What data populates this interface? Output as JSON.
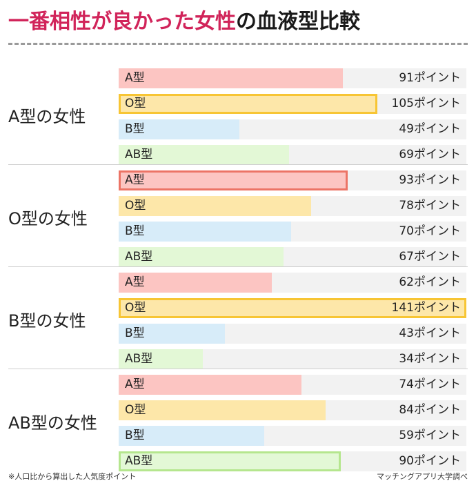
{
  "title": {
    "highlight": "一番相性が良かった女性",
    "rest": "の血液型比較"
  },
  "footnote": "※人口比から算出した人気度ポイント",
  "source": "マッチングアプリ大学調べ",
  "colors": {
    "A型": "#fcc5c2",
    "O型": "#fde7a9",
    "B型": "#d7ecf9",
    "AB型": "#e3f8d6",
    "highlight_title": "#d1245a",
    "best_border_A型": "#ec7466",
    "best_border_O型": "#f7c534",
    "best_border_AB型": "#b5e68e",
    "row_background": "#f2f2f2"
  },
  "chart_data": {
    "type": "bar",
    "orientation": "horizontal",
    "title": "一番相性が良かった女性の血液型比較",
    "xlim": [
      0,
      141
    ],
    "unit": "ポイント",
    "groups": [
      {
        "label": "A型の女性",
        "bars": [
          {
            "name": "A型",
            "value": 91,
            "display": "91ポイント",
            "best": false
          },
          {
            "name": "O型",
            "value": 105,
            "display": "105ポイント",
            "best": true
          },
          {
            "name": "B型",
            "value": 49,
            "display": "49ポイント",
            "best": false
          },
          {
            "name": "AB型",
            "value": 69,
            "display": "69ポイント",
            "best": false
          }
        ]
      },
      {
        "label": "O型の女性",
        "bars": [
          {
            "name": "A型",
            "value": 93,
            "display": "93ポイント",
            "best": true
          },
          {
            "name": "O型",
            "value": 78,
            "display": "78ポイント",
            "best": false
          },
          {
            "name": "B型",
            "value": 70,
            "display": "70ポイント",
            "best": false
          },
          {
            "name": "AB型",
            "value": 67,
            "display": "67ポイント",
            "best": false
          }
        ]
      },
      {
        "label": "B型の女性",
        "bars": [
          {
            "name": "A型",
            "value": 62,
            "display": "62ポイント",
            "best": false
          },
          {
            "name": "O型",
            "value": 141,
            "display": "141ポイント",
            "best": true
          },
          {
            "name": "B型",
            "value": 43,
            "display": "43ポイント",
            "best": false
          },
          {
            "name": "AB型",
            "value": 34,
            "display": "34ポイント",
            "best": false
          }
        ]
      },
      {
        "label": "AB型の女性",
        "bars": [
          {
            "name": "A型",
            "value": 74,
            "display": "74ポイント",
            "best": false
          },
          {
            "name": "O型",
            "value": 84,
            "display": "84ポイント",
            "best": false
          },
          {
            "name": "B型",
            "value": 59,
            "display": "59ポイント",
            "best": false
          },
          {
            "name": "AB型",
            "value": 90,
            "display": "90ポイント",
            "best": true
          }
        ]
      }
    ]
  }
}
